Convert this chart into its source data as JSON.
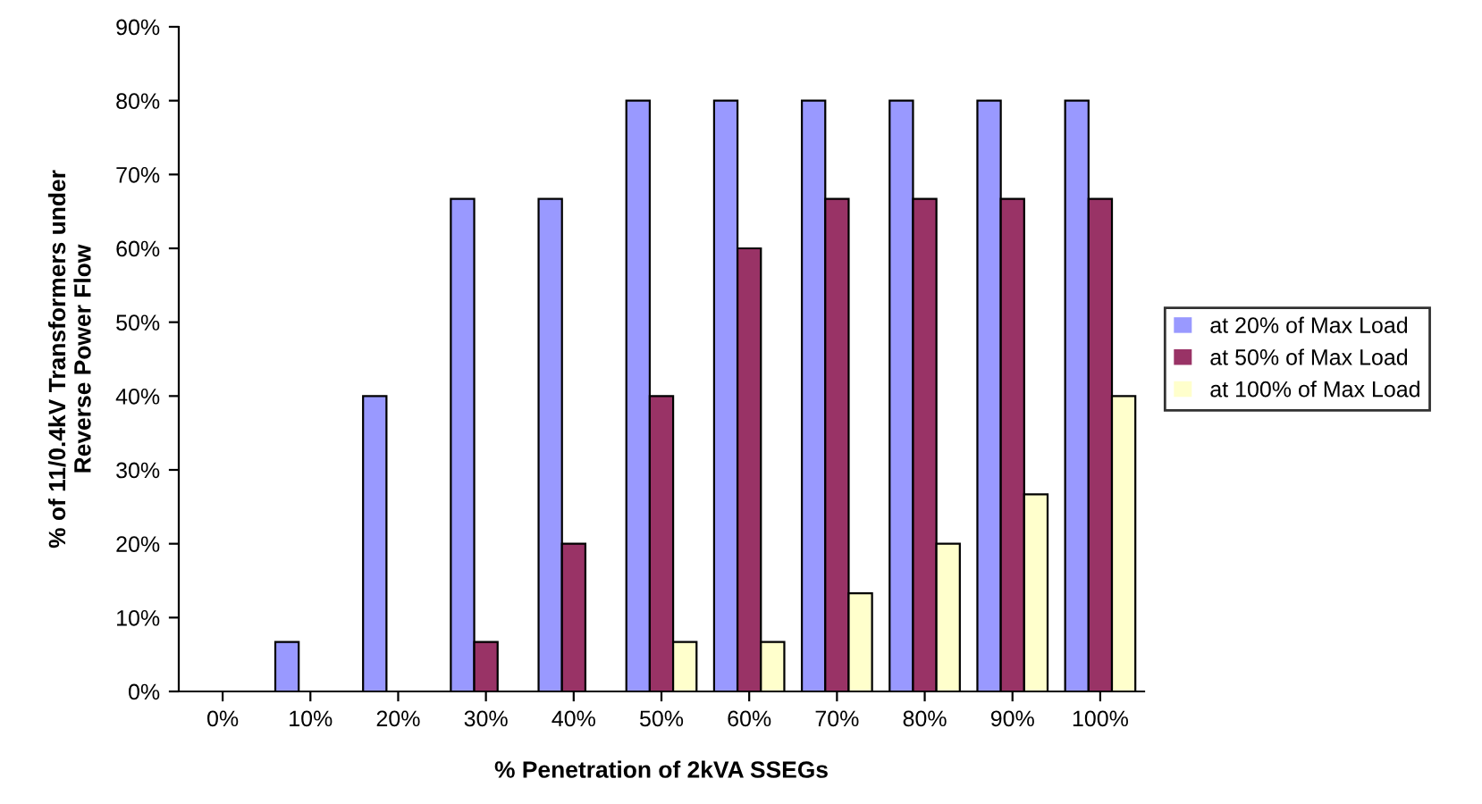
{
  "chart_data": {
    "type": "bar",
    "xlabel": "% Penetration of 2kVA SSEGs",
    "ylabel": "% of 11/0.4kV Transformers under\nReverse Power Flow",
    "categories": [
      "0%",
      "10%",
      "20%",
      "30%",
      "40%",
      "50%",
      "60%",
      "70%",
      "80%",
      "90%",
      "100%"
    ],
    "series": [
      {
        "name": "at 20% of Max Load",
        "color": "#9999ff",
        "values": [
          0,
          6.7,
          40,
          66.7,
          66.7,
          80,
          80,
          80,
          80,
          80,
          80
        ]
      },
      {
        "name": "at 50% of Max Load",
        "color": "#993366",
        "values": [
          0,
          0,
          0,
          6.7,
          20,
          40,
          60,
          66.7,
          66.7,
          66.7,
          66.7
        ]
      },
      {
        "name": "at 100% of Max Load",
        "color": "#ffffcc",
        "values": [
          0,
          0,
          0,
          0,
          0,
          6.7,
          6.7,
          13.3,
          20,
          26.7,
          40
        ]
      }
    ],
    "ylim": [
      0,
      90
    ],
    "yticks": [
      {
        "value": 0,
        "label": "0%"
      },
      {
        "value": 10,
        "label": "10%"
      },
      {
        "value": 20,
        "label": "20%"
      },
      {
        "value": 30,
        "label": "30%"
      },
      {
        "value": 40,
        "label": "40%"
      },
      {
        "value": 50,
        "label": "50%"
      },
      {
        "value": 60,
        "label": "60%"
      },
      {
        "value": 70,
        "label": "70%"
      },
      {
        "value": 80,
        "label": "80%"
      },
      {
        "value": 90,
        "label": "90%"
      }
    ],
    "grid": false,
    "legend": "right"
  }
}
